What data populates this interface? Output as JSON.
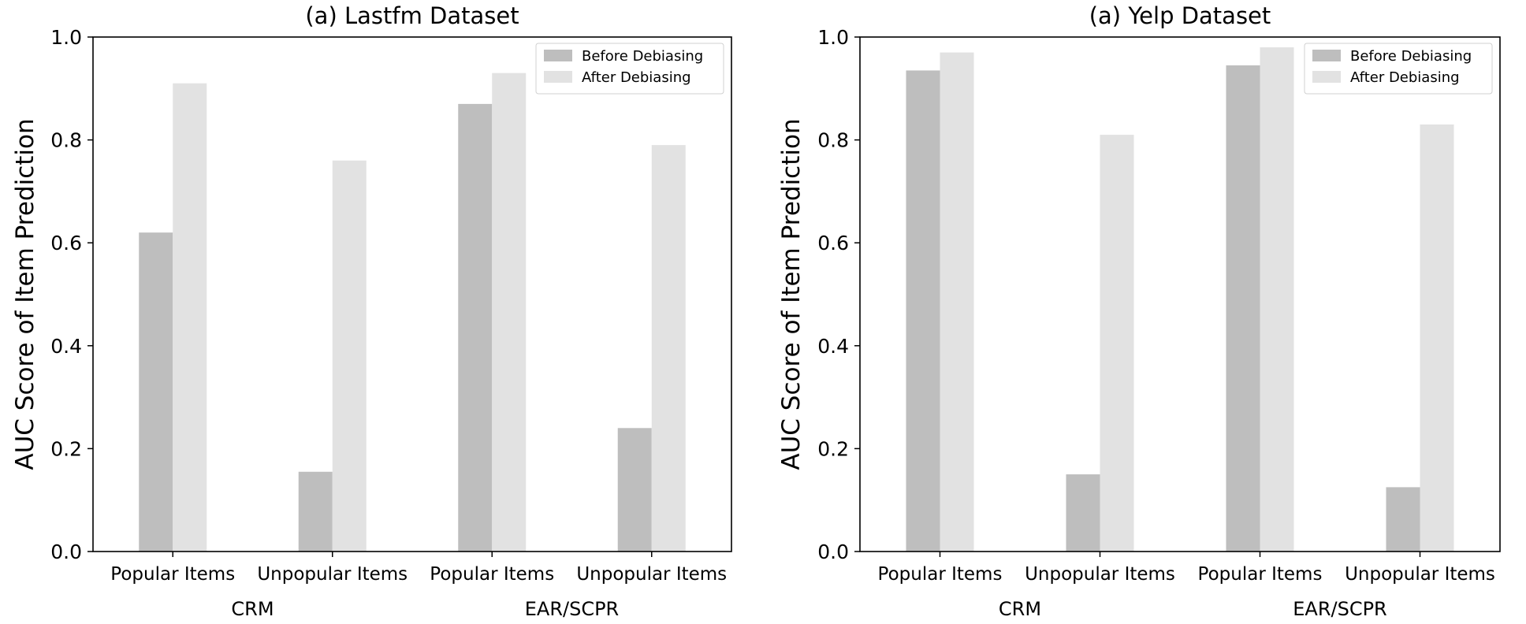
{
  "chart_data": [
    {
      "type": "bar",
      "title": "(a) Lastfm Dataset",
      "ylabel": "AUC Score of Item Prediction",
      "xlabel": "",
      "categories": [
        "Popular Items",
        "Unpopular Items",
        "Popular Items",
        "Unpopular Items"
      ],
      "groups": [
        {
          "label": "CRM",
          "categories": [
            0,
            1
          ]
        },
        {
          "label": "EAR/SCPR",
          "categories": [
            2,
            3
          ]
        }
      ],
      "series": [
        {
          "name": "Before Debiasing",
          "color": "#bebebe",
          "values": [
            0.62,
            0.155,
            0.87,
            0.24
          ]
        },
        {
          "name": "After Debiasing",
          "color": "#e2e2e2",
          "values": [
            0.91,
            0.76,
            0.93,
            0.79
          ]
        }
      ],
      "ylim": [
        0,
        1.0
      ],
      "yticks": [
        "0.0",
        "0.2",
        "0.4",
        "0.6",
        "0.8",
        "1.0"
      ],
      "grid": false,
      "legend": "top-right"
    },
    {
      "type": "bar",
      "title": "(a) Yelp Dataset",
      "ylabel": "AUC Score of Item Prediction",
      "xlabel": "",
      "categories": [
        "Popular Items",
        "Unpopular Items",
        "Popular Items",
        "Unpopular Items"
      ],
      "groups": [
        {
          "label": "CRM",
          "categories": [
            0,
            1
          ]
        },
        {
          "label": "EAR/SCPR",
          "categories": [
            2,
            3
          ]
        }
      ],
      "series": [
        {
          "name": "Before Debiasing",
          "color": "#bebebe",
          "values": [
            0.935,
            0.15,
            0.945,
            0.125
          ]
        },
        {
          "name": "After Debiasing",
          "color": "#e2e2e2",
          "values": [
            0.97,
            0.81,
            0.98,
            0.83
          ]
        }
      ],
      "ylim": [
        0,
        1.0
      ],
      "yticks": [
        "0.0",
        "0.2",
        "0.4",
        "0.6",
        "0.8",
        "1.0"
      ],
      "grid": false,
      "legend": "top-right"
    }
  ]
}
